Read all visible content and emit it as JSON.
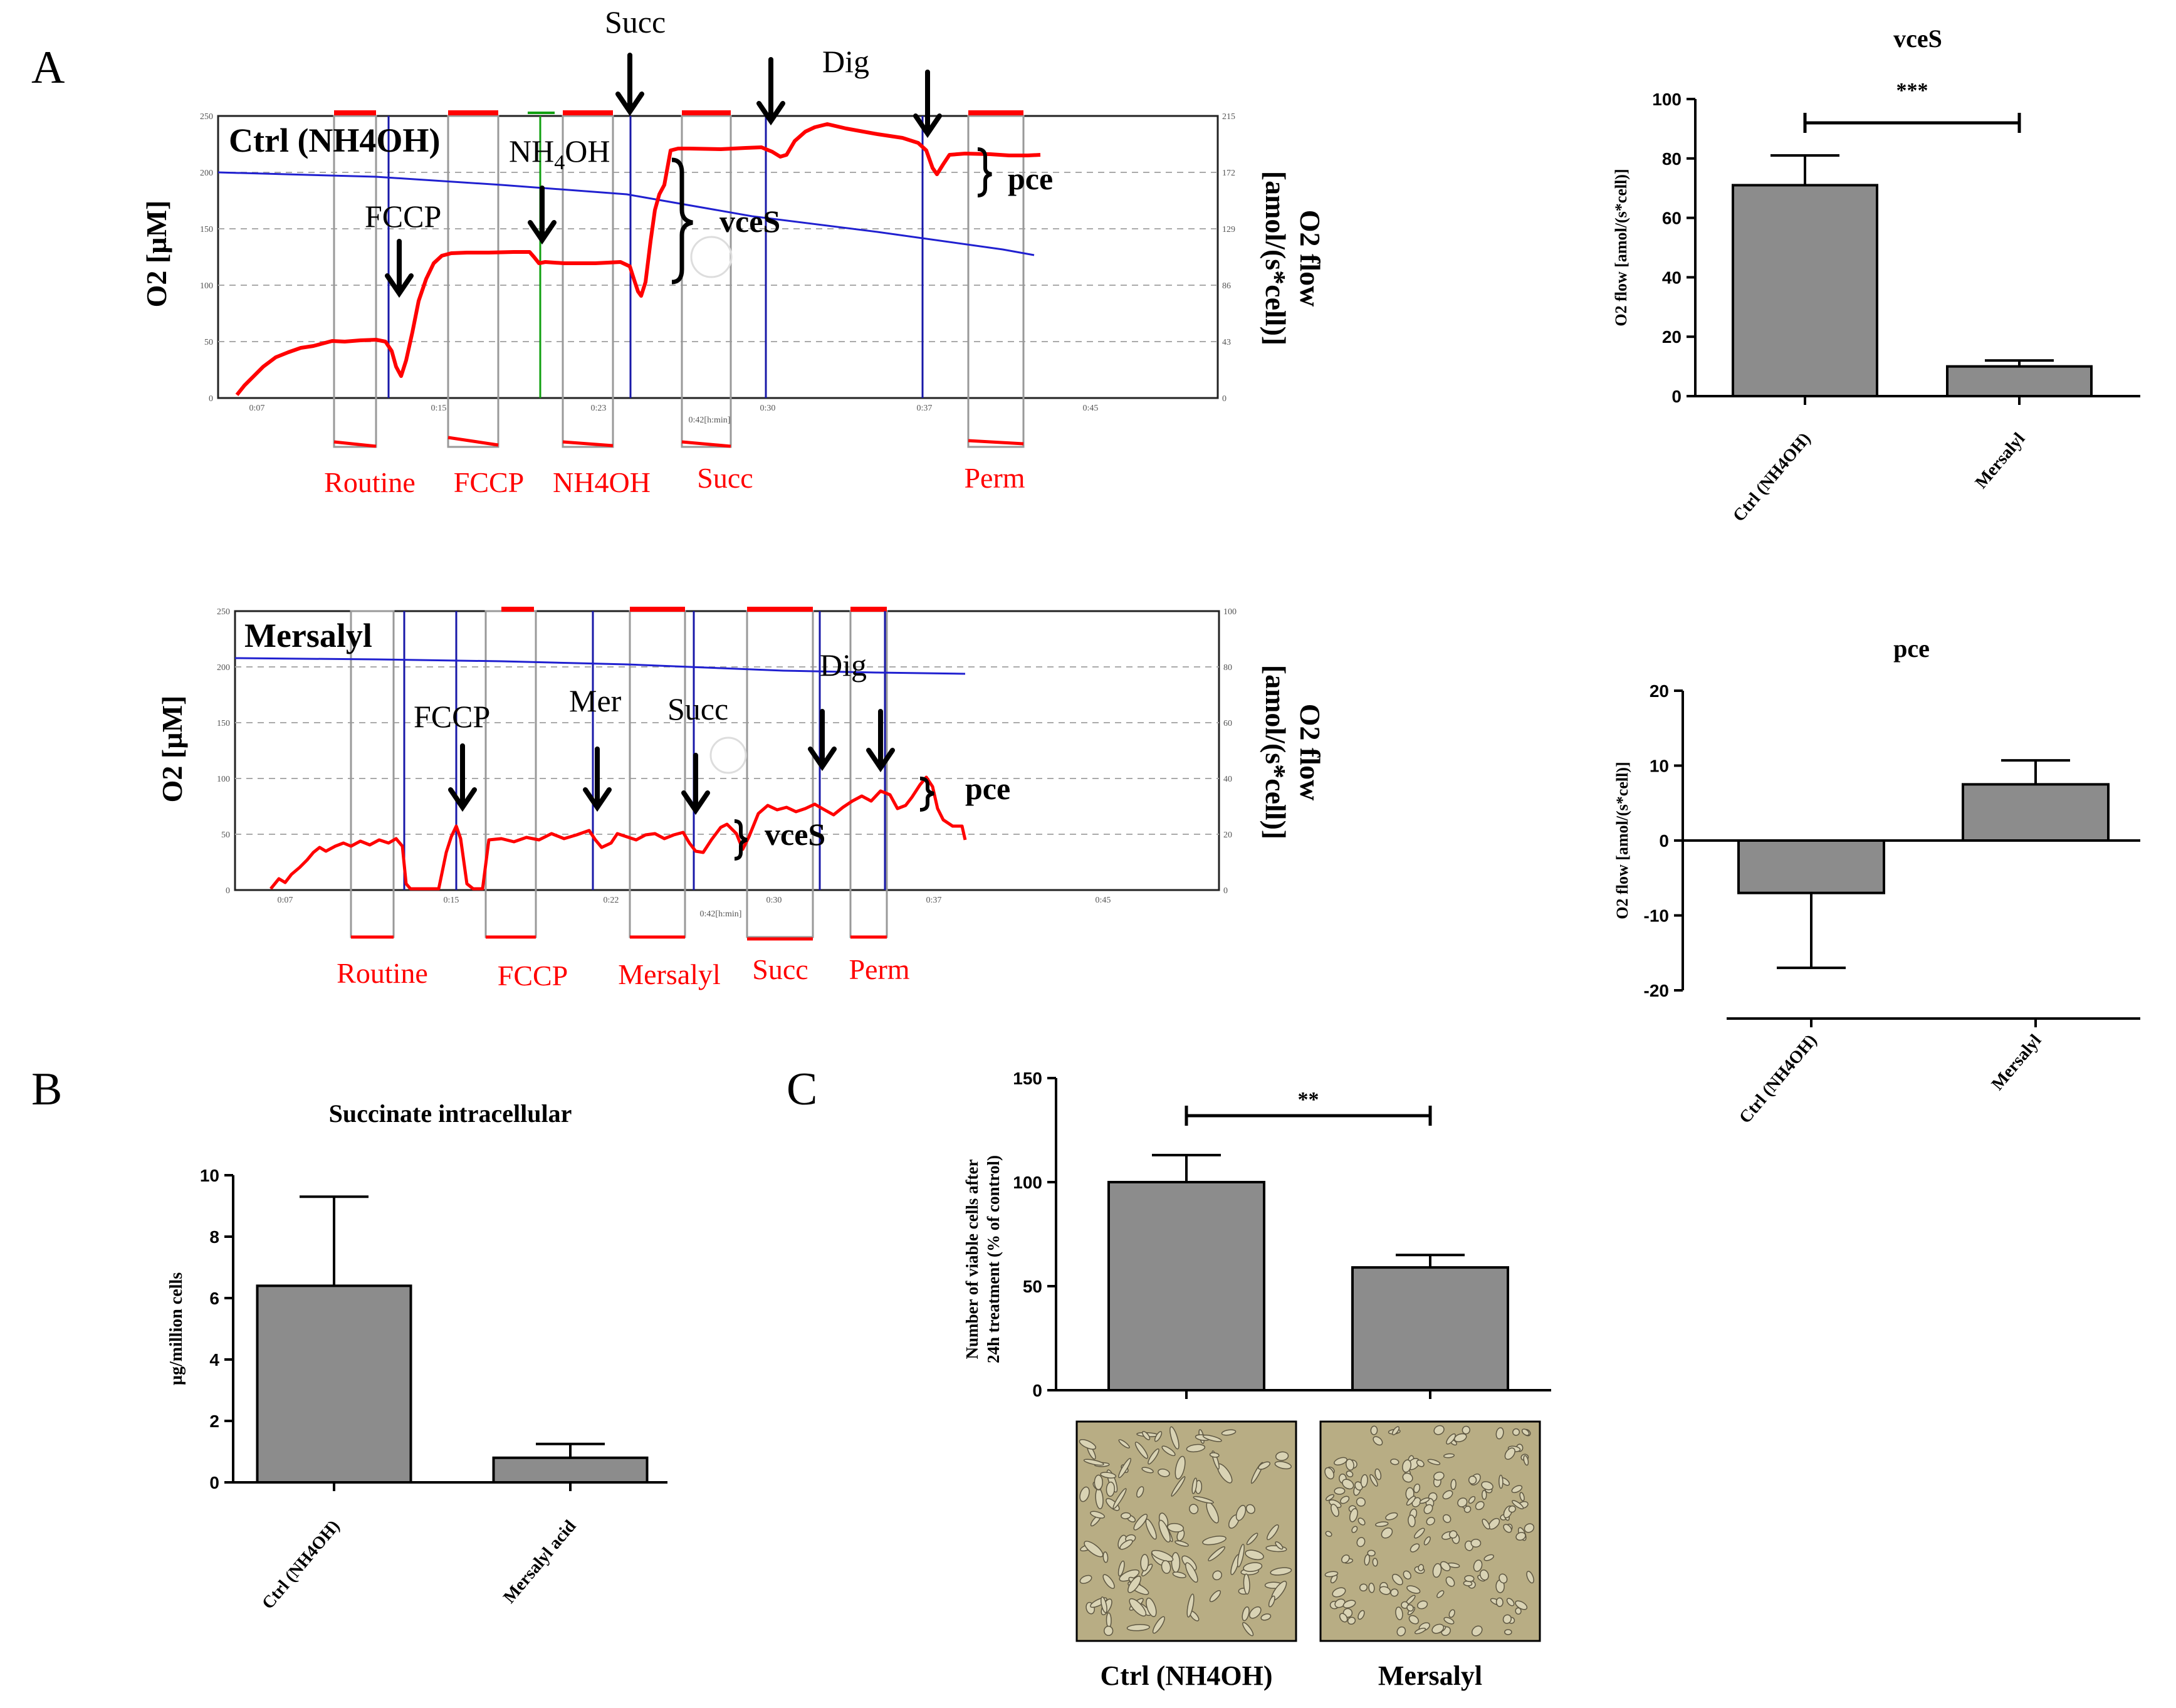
{
  "panel_letters": {
    "a": "A",
    "b": "B",
    "c": "C"
  },
  "colors": {
    "trace_red": "#ff0000",
    "trace_blue": "#2020d0",
    "marker_blue": "#1818a8",
    "marker_green": "#10a010",
    "bar_gray": "#8c8c8c",
    "micro_bg": "#b8ad84"
  },
  "traces": {
    "top": {
      "name": "Ctrl (NH4OH)",
      "left_axis_label": "O2 [µM]",
      "right_axis_label_1": "O2 flow",
      "right_axis_label_2": "[amol/(s*cell)]",
      "left_ticks": [
        "250",
        "200",
        "150",
        "100",
        "50",
        "0"
      ],
      "right_ticks": [
        "215",
        "172",
        "129",
        "86",
        "43",
        "0"
      ],
      "time_ticks": [
        "0:07",
        "0:15",
        "0:23",
        "0:30",
        "0:37",
        "0:45"
      ],
      "time_unit": "0:42[h:min]",
      "annotations": {
        "fccp": "FCCP",
        "nh4oh": "NH",
        "nh4oh_sub": "4",
        "nh4oh_end": "OH",
        "succ": "Succ",
        "dig": "Dig",
        "vces": "vceS",
        "pce": "pce"
      },
      "marks": [
        "Routine",
        "FCCP",
        "NH4OH",
        "Succ",
        "Perm"
      ]
    },
    "bottom": {
      "name": "Mersalyl",
      "left_axis_label": "O2 [µM]",
      "right_axis_label_1": "O2 flow",
      "right_axis_label_2": "[amol/(s*cell)]",
      "left_ticks": [
        "250",
        "200",
        "150",
        "100",
        "50",
        "0"
      ],
      "right_ticks": [
        "100",
        "80",
        "60",
        "40",
        "20",
        "0"
      ],
      "time_ticks": [
        "0:07",
        "0:15",
        "0:22",
        "0:30",
        "0:37",
        "0:45"
      ],
      "time_unit": "0:42[h:min]",
      "annotations": {
        "fccp": "FCCP",
        "mer": "Mer",
        "succ": "Succ",
        "dig": "Dig",
        "vces": "vceS",
        "pce": "pce"
      },
      "marks": [
        "Routine",
        "FCCP",
        "Mersalyl",
        "Succ",
        "Perm"
      ]
    }
  },
  "chart_data": [
    {
      "id": "vces",
      "type": "bar",
      "title": "vceS",
      "ylabel": "O2 flow [amol/(s*cell)]",
      "xlabel": "",
      "categories": [
        "Ctrl (NH4OH)",
        "Mersalyl"
      ],
      "values": [
        71,
        10
      ],
      "errors": [
        10,
        2
      ],
      "ylim": [
        0,
        100
      ],
      "yticks": [
        "0",
        "20",
        "40",
        "60",
        "80",
        "100"
      ],
      "significance": "***"
    },
    {
      "id": "pce",
      "type": "bar",
      "title": "pce",
      "ylabel": "O2 flow [amol/(s*cell)]",
      "xlabel": "",
      "categories": [
        "Ctrl (NH4OH)",
        "Mersalyl"
      ],
      "values": [
        -7,
        7.5
      ],
      "errors": [
        10,
        3.2
      ],
      "ylim": [
        -20,
        20
      ],
      "yticks": [
        "-20",
        "-10",
        "0",
        "10",
        "20"
      ]
    },
    {
      "id": "succinate",
      "type": "bar",
      "title": "Succinate intracellular",
      "ylabel": "µg/million cells",
      "xlabel": "",
      "categories": [
        "Ctrl (NH4OH)",
        "Mersalyl acid"
      ],
      "values": [
        6.4,
        0.8
      ],
      "errors": [
        2.9,
        0.45
      ],
      "ylim": [
        0,
        10
      ],
      "yticks": [
        "0",
        "2",
        "4",
        "6",
        "8",
        "10"
      ]
    },
    {
      "id": "viable",
      "type": "bar",
      "title": "",
      "ylabel_line1": "Number of viable cells after",
      "ylabel_line2": "24h treatment (% of control)",
      "xlabel": "",
      "categories": [
        "Ctrl (NH4OH)",
        "Mersalyl"
      ],
      "values": [
        100,
        59
      ],
      "errors": [
        13,
        6
      ],
      "ylim": [
        0,
        150
      ],
      "yticks": [
        "0",
        "50",
        "100",
        "150"
      ],
      "significance": "**"
    }
  ],
  "micrographs": {
    "ctrl_label": "Ctrl (NH4OH)",
    "mer_label": "Mersalyl"
  }
}
